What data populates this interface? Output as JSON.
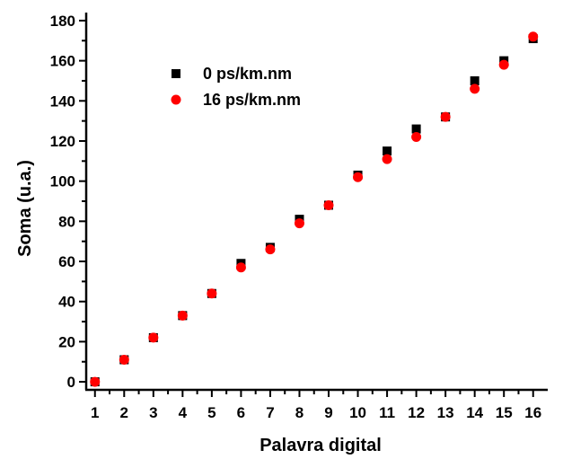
{
  "chart_data": {
    "type": "scatter",
    "xlabel": "Palavra digital",
    "ylabel": "Soma (u.a.)",
    "xlim": [
      0.7,
      16.5
    ],
    "ylim": [
      -4,
      184
    ],
    "xticks": [
      1,
      2,
      3,
      4,
      5,
      6,
      7,
      8,
      9,
      10,
      11,
      12,
      13,
      14,
      15,
      16
    ],
    "yticks": [
      0,
      20,
      40,
      60,
      80,
      100,
      120,
      140,
      160,
      180
    ],
    "legend_position": "top-left",
    "grid": false,
    "x": [
      1,
      2,
      3,
      4,
      5,
      6,
      7,
      8,
      9,
      10,
      11,
      12,
      13,
      14,
      15,
      16
    ],
    "series": [
      {
        "name": "0 ps/km.nm",
        "marker": "square",
        "color": "#000000",
        "values": [
          0,
          11,
          22,
          33,
          44,
          59,
          67,
          81,
          88,
          103,
          115,
          126,
          132,
          150,
          160,
          171
        ]
      },
      {
        "name": "16 ps/km.nm",
        "marker": "circle",
        "color": "#ff0000",
        "values": [
          0,
          11,
          22,
          33,
          44,
          57,
          66,
          79,
          88,
          102,
          111,
          122,
          132,
          146,
          158,
          172
        ]
      }
    ]
  }
}
